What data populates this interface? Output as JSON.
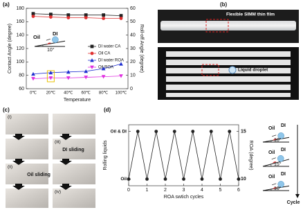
{
  "panels": {
    "a": "(a)",
    "b": "(b)",
    "c": "(c)",
    "d": "(d)"
  },
  "photo_b": {
    "top_label": "Flexible SIMM thin film",
    "bottom_label": "Liquid droplet"
  },
  "photo_c": {
    "steps": [
      "(i)",
      "(ii)",
      "(iii)",
      "(iv)"
    ],
    "di_label": "DI sliding",
    "oil_label": "Oil sliding"
  },
  "chart_data": [
    {
      "type": "line",
      "xlabel": "Temperature",
      "ylabel": "Contact Angle (degree)",
      "y2label": "Roll-off Angle (degree)",
      "categories": [
        "0℃",
        "20℃",
        "40℃",
        "60℃",
        "80℃",
        "100℃"
      ],
      "ylim": [
        60,
        180
      ],
      "yticks": [
        60,
        80,
        100,
        120,
        140,
        160,
        180
      ],
      "y2lim": [
        0,
        60
      ],
      "y2ticks": [
        0,
        10,
        20,
        30,
        40,
        50,
        60
      ],
      "legend": "right",
      "annotations": [
        "Oil",
        "DI",
        "10°"
      ],
      "series": [
        {
          "name": "DI water CA",
          "color": "#222222",
          "marker": "square",
          "values": [
            172,
            171,
            170,
            170,
            170,
            169
          ]
        },
        {
          "name": "Oil CA",
          "color": "#e03030",
          "marker": "circle",
          "values": [
            168,
            167,
            166,
            166,
            165,
            165
          ]
        },
        {
          "name": "DI water ROA",
          "color": "#2030d0",
          "marker": "triangle",
          "axis": "y2",
          "values": [
            11,
            12,
            12.5,
            13,
            15,
            18.5
          ]
        },
        {
          "name": "Oil ROA",
          "color": "#e030e0",
          "marker": "triangle-down",
          "axis": "y2",
          "values": [
            7.5,
            8,
            8,
            8.5,
            9,
            9.5
          ]
        }
      ]
    },
    {
      "type": "line",
      "xlabel": "ROA swtich cycles",
      "ylabel": "Rolling liquids",
      "y2label": "ROA (degree)",
      "xlim": [
        0,
        6
      ],
      "xticks": [
        0,
        1,
        2,
        3,
        4,
        5,
        6
      ],
      "ylim": [
        9.3,
        15.7
      ],
      "yticks": [
        {
          "value": 10,
          "label": "Oil"
        },
        {
          "value": 15,
          "label": "Oil & DI"
        }
      ],
      "y2lim": [
        9.3,
        15.7
      ],
      "y2ticks": [
        10,
        15
      ],
      "annotations": [
        "Oil",
        "DI",
        "10°",
        "Oil",
        "DI",
        "15°",
        "Oil",
        "DI",
        "10°",
        "Cycle"
      ],
      "series": [
        {
          "color": "#222222",
          "marker": "circle",
          "x": [
            0,
            0.5,
            1,
            1.5,
            2,
            2.5,
            3,
            3.5,
            4,
            4.5,
            5,
            5.5,
            6
          ],
          "values": [
            10,
            15,
            10,
            15,
            10,
            15,
            10,
            15,
            10,
            15,
            10,
            15,
            10
          ]
        }
      ]
    }
  ]
}
